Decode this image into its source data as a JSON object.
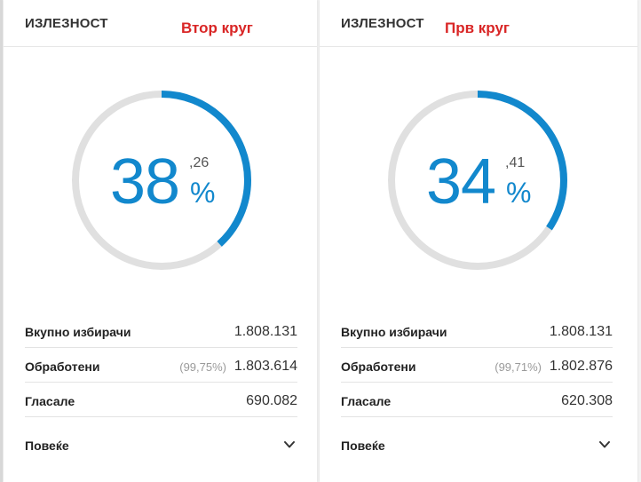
{
  "colors": {
    "accent": "#1288cd",
    "track": "#e0e0e0",
    "round_label": "#d92626"
  },
  "panels": [
    {
      "title": "ИЗЛЕЗНОСТ",
      "round_label": "Втор круг",
      "turnout": {
        "integer": "38",
        "decimal": ",26",
        "percent_sign": "%",
        "fraction": 0.3826
      },
      "stats": [
        {
          "label": "Вкупно избирачи",
          "pct": "",
          "value": "1.808.131"
        },
        {
          "label": "Обработени",
          "pct": "(99,75%)",
          "value": "1.803.614"
        },
        {
          "label": "Гласале",
          "pct": "",
          "value": "690.082"
        }
      ],
      "more_label": "Повеќе",
      "more_icon": "chevron-down-icon"
    },
    {
      "title": "ИЗЛЕЗНОСТ",
      "round_label": "Прв круг",
      "turnout": {
        "integer": "34",
        "decimal": ",41",
        "percent_sign": "%",
        "fraction": 0.3441
      },
      "stats": [
        {
          "label": "Вкупно избирачи",
          "pct": "",
          "value": "1.808.131"
        },
        {
          "label": "Обработени",
          "pct": "(99,71%)",
          "value": "1.802.876"
        },
        {
          "label": "Гласале",
          "pct": "",
          "value": "620.308"
        }
      ],
      "more_label": "Повеќе",
      "more_icon": "chevron-down-icon"
    }
  ]
}
